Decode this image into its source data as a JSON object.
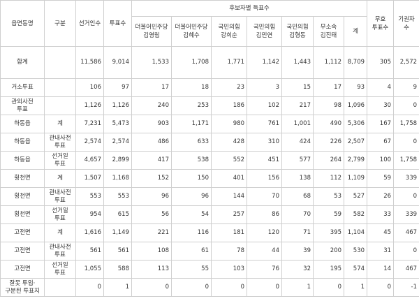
{
  "table": {
    "header": {
      "region": "읍면동명",
      "kind": "구분",
      "electors": "선거인수",
      "votes": "투표수",
      "group": "후보자별 득표수",
      "candidates": [
        "더불어민주당\n김영림",
        "더불어민주당\n김혜수",
        "국민의힘\n강희순",
        "국민의힘\n김민연",
        "국민의힘\n김형동",
        "무소속\n김진태",
        "계"
      ],
      "invalid": "무효\n투표수",
      "abstain": "기권자\n수"
    },
    "rows": [
      [
        "합계",
        "",
        "11,586",
        "9,014",
        "1,533",
        "1,708",
        "1,771",
        "1,142",
        "1,443",
        "1,112",
        "8,709",
        "305",
        "2,572"
      ],
      [
        "거소투표",
        "",
        "106",
        "97",
        "17",
        "18",
        "23",
        "3",
        "15",
        "17",
        "93",
        "4",
        "9"
      ],
      [
        "관외사전\n투표",
        "",
        "1,126",
        "1,126",
        "240",
        "253",
        "186",
        "102",
        "217",
        "98",
        "1,096",
        "30",
        "0"
      ],
      [
        "하동읍",
        "계",
        "7,231",
        "5,473",
        "903",
        "1,171",
        "980",
        "761",
        "1,001",
        "490",
        "5,306",
        "167",
        "1,758"
      ],
      [
        "하동읍",
        "관내사전\n투표",
        "2,574",
        "2,574",
        "486",
        "633",
        "428",
        "310",
        "424",
        "226",
        "2,507",
        "67",
        "0"
      ],
      [
        "하동읍",
        "선거일\n투표",
        "4,657",
        "2,899",
        "417",
        "538",
        "552",
        "451",
        "577",
        "264",
        "2,799",
        "100",
        "1,758"
      ],
      [
        "횡천면",
        "계",
        "1,507",
        "1,168",
        "152",
        "150",
        "401",
        "156",
        "138",
        "112",
        "1,109",
        "59",
        "339"
      ],
      [
        "횡천면",
        "관내사전\n투표",
        "553",
        "553",
        "96",
        "96",
        "144",
        "70",
        "68",
        "53",
        "527",
        "26",
        "0"
      ],
      [
        "횡천면",
        "선거일\n투표",
        "954",
        "615",
        "56",
        "54",
        "257",
        "86",
        "70",
        "59",
        "582",
        "33",
        "339"
      ],
      [
        "고전면",
        "계",
        "1,616",
        "1,149",
        "221",
        "116",
        "181",
        "120",
        "71",
        "395",
        "1,104",
        "45",
        "467"
      ],
      [
        "고전면",
        "관내사전\n투표",
        "561",
        "561",
        "108",
        "61",
        "78",
        "44",
        "39",
        "200",
        "530",
        "31",
        "0"
      ],
      [
        "고전면",
        "선거일\n투표",
        "1,055",
        "588",
        "113",
        "55",
        "103",
        "76",
        "32",
        "195",
        "574",
        "14",
        "467"
      ],
      [
        "잘못 투입·\n구분된 투표지",
        "",
        "0",
        "1",
        "0",
        "0",
        "0",
        "0",
        "1",
        "0",
        "1",
        "0",
        "-1"
      ]
    ]
  }
}
